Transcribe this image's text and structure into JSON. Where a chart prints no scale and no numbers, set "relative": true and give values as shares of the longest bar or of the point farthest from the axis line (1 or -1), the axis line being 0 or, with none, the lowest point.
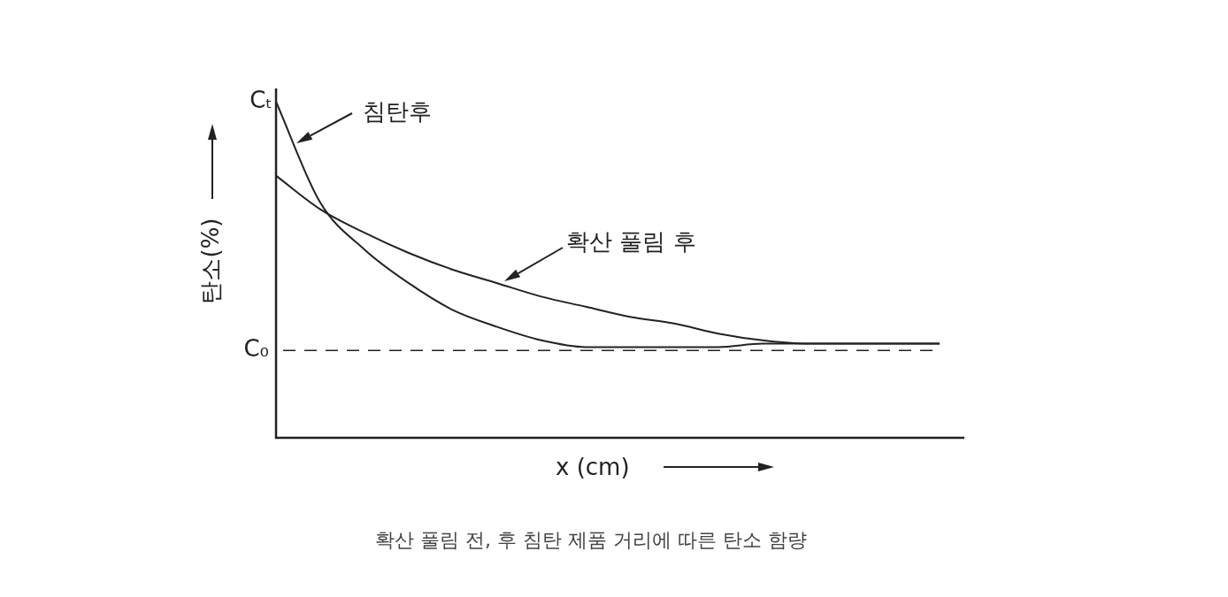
{
  "chart_data": {
    "type": "line",
    "title": "확산 풀림 전, 후 침탄 제품 거리에 따른 탄소 함량",
    "xlabel": "x (cm)",
    "ylabel": "탄소(%)",
    "relative": true,
    "marker": "none",
    "line_style": "solid",
    "categories": [
      null,
      null,
      null,
      null,
      null,
      null,
      null,
      null,
      null,
      null,
      null,
      null,
      null,
      null,
      null,
      null
    ],
    "series": [
      {
        "name": "침탄후",
        "color": "#222222",
        "values": [
          1.0,
          0.7,
          0.56,
          0.46,
          0.38,
          0.33,
          0.29,
          0.27,
          0.27,
          0.27,
          0.27,
          0.28,
          0.28,
          0.28,
          0.28,
          0.28
        ]
      },
      {
        "name": "확산 풀림 후",
        "color": "#222222",
        "values": [
          0.78,
          0.68,
          0.61,
          0.55,
          0.5,
          0.46,
          0.42,
          0.39,
          0.36,
          0.34,
          0.31,
          0.29,
          0.28,
          0.28,
          0.28,
          0.28
        ]
      }
    ],
    "ref_lines": [
      {
        "axis": "y",
        "value": 0.26,
        "label": "C₀",
        "line_style": "dashed",
        "color": "#222222"
      }
    ],
    "annotations": [
      "Cₜ"
    ]
  }
}
